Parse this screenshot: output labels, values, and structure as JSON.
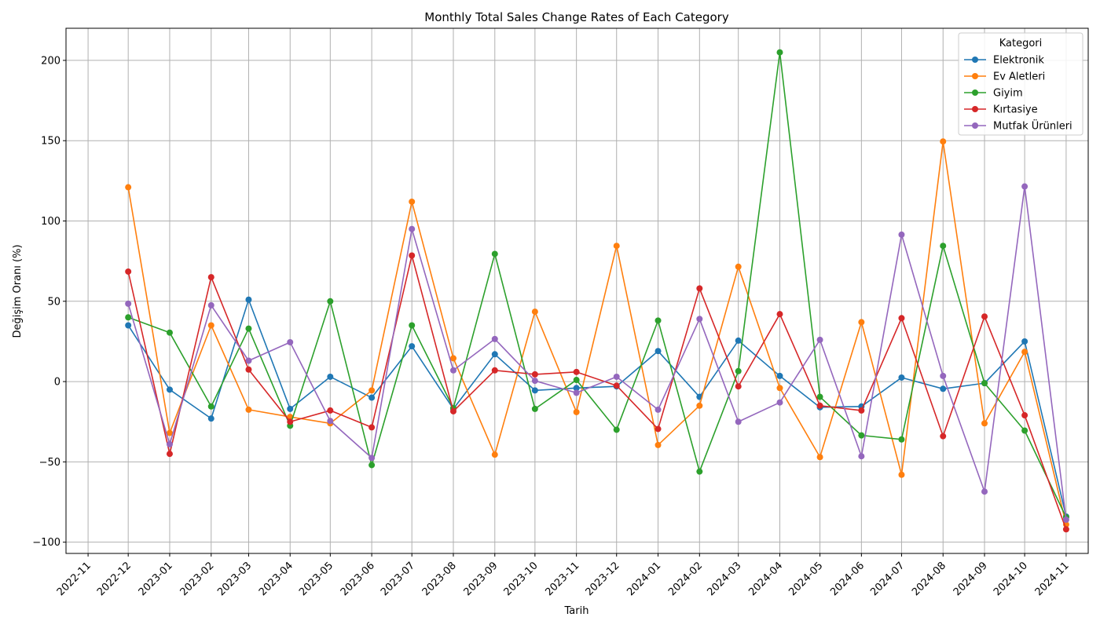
{
  "chart_data": {
    "type": "line",
    "title": "Monthly Total Sales Change Rates of Each Category",
    "xlabel": "Tarih",
    "ylabel": "Değişim Oranı (%)",
    "xlim": [
      "2022-11-01",
      "2024-11-01"
    ],
    "ylim": [
      -107,
      220
    ],
    "grid": true,
    "legend": {
      "title": "Kategori",
      "placement": "top-right"
    },
    "x_ticks": [
      "2022-11",
      "2022-12",
      "2023-01",
      "2023-02",
      "2023-03",
      "2023-04",
      "2023-05",
      "2023-06",
      "2023-07",
      "2023-08",
      "2023-09",
      "2023-10",
      "2023-11",
      "2023-12",
      "2024-01",
      "2024-02",
      "2024-03",
      "2024-04",
      "2024-05",
      "2024-06",
      "2024-07",
      "2024-08",
      "2024-09",
      "2024-10",
      "2024-11"
    ],
    "y_ticks": [
      200,
      150,
      100,
      50,
      0,
      -50,
      -100
    ],
    "y_tick_labels": [
      "200",
      "150",
      "100",
      "50",
      "0",
      "−50",
      "−100"
    ],
    "x": [
      "2022-12-01",
      "2023-01-01",
      "2023-02-01",
      "2023-03-01",
      "2023-04-01",
      "2023-05-01",
      "2023-06-01",
      "2023-07-01",
      "2023-08-01",
      "2023-09-01",
      "2023-10-01",
      "2023-11-01",
      "2023-12-01",
      "2024-01-01",
      "2024-02-01",
      "2024-03-01",
      "2024-04-01",
      "2024-05-01",
      "2024-06-01",
      "2024-07-01",
      "2024-08-01",
      "2024-09-01",
      "2024-10-01",
      "2024-11-01"
    ],
    "series": [
      {
        "name": "Elektronik",
        "color": "#1f77b4",
        "values": [
          35,
          -5,
          -23,
          51,
          -17,
          3,
          -10,
          22,
          -17,
          17,
          -5.5,
          -4,
          -3,
          19,
          -9.5,
          25.5,
          3.5,
          -16,
          -15.5,
          2.5,
          -4.5,
          -1,
          25,
          -84
        ]
      },
      {
        "name": "Ev Aletleri",
        "color": "#ff7f0e",
        "values": [
          121,
          -32,
          35,
          -17.5,
          -22,
          -26,
          -5.5,
          112,
          14.5,
          -45.5,
          43.5,
          -19,
          84.5,
          -39.5,
          -15,
          71.5,
          -4,
          -47,
          37,
          -58,
          149.5,
          -26,
          18.5,
          -89
        ]
      },
      {
        "name": "Giyim",
        "color": "#2ca02c",
        "values": [
          40,
          30.5,
          -15.5,
          33,
          -27.5,
          50,
          -52,
          35,
          -16.5,
          79.5,
          -17,
          1,
          -30,
          38,
          -56,
          6.5,
          205,
          -9.5,
          -33.5,
          -36,
          84.5,
          -1,
          -30.5,
          -84.5
        ]
      },
      {
        "name": "Kırtasiye",
        "color": "#d62728",
        "values": [
          68.5,
          -45,
          65,
          7.5,
          -25,
          -18,
          -28.5,
          78.5,
          -18.5,
          7,
          4.5,
          6,
          -2.5,
          -29.5,
          58,
          -3,
          42,
          -15,
          -18,
          39.5,
          -34,
          40.5,
          -21,
          -92
        ]
      },
      {
        "name": "Mutfak Ürünleri",
        "color": "#9467bd",
        "values": [
          48.5,
          -39,
          47.5,
          13,
          24.5,
          -24.5,
          -47.5,
          95,
          7,
          26.5,
          0.5,
          -7,
          3,
          -17.5,
          39,
          -25,
          -13,
          26,
          -46.5,
          91.5,
          3.5,
          -68.5,
          121.5,
          -86
        ]
      }
    ]
  }
}
